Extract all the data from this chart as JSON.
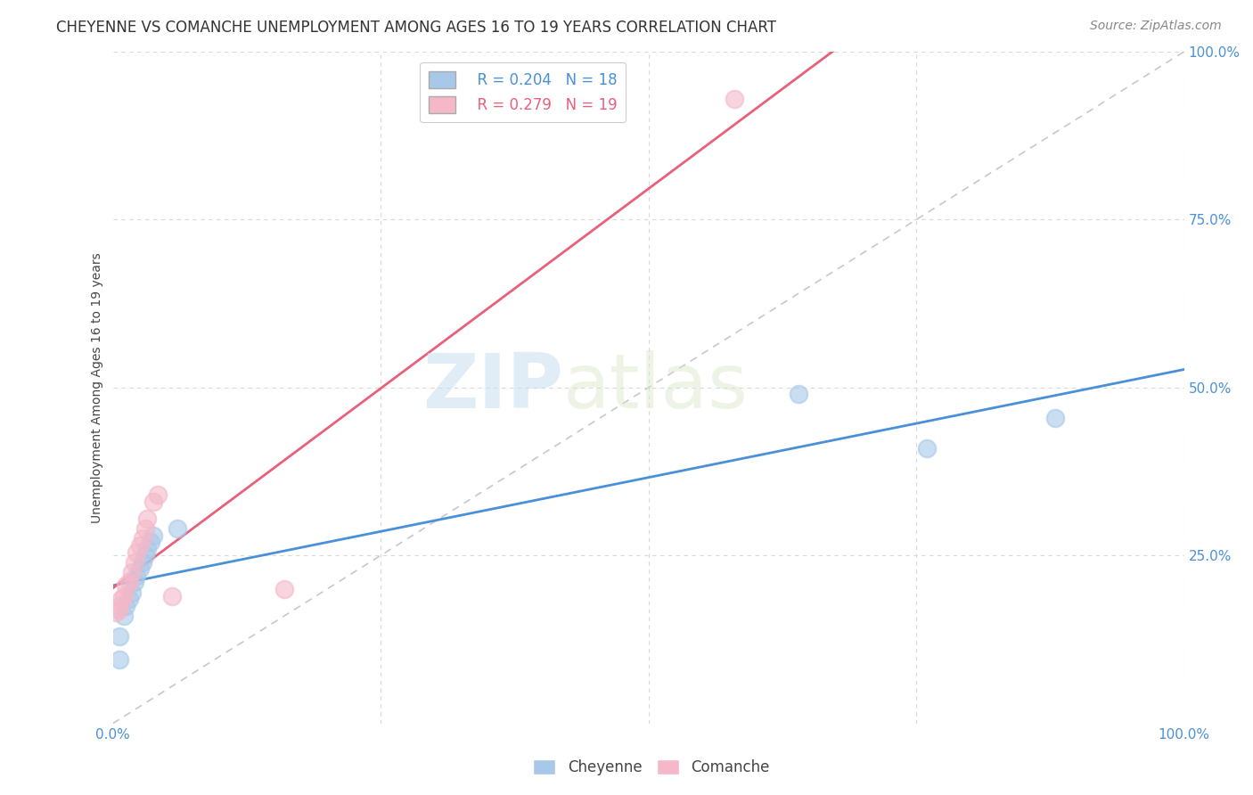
{
  "title": "CHEYENNE VS COMANCHE UNEMPLOYMENT AMONG AGES 16 TO 19 YEARS CORRELATION CHART",
  "source": "Source: ZipAtlas.com",
  "ylabel": "Unemployment Among Ages 16 to 19 years",
  "xlim": [
    0,
    1.0
  ],
  "ylim": [
    0,
    1.0
  ],
  "legend_r_cheyenne": "R = 0.204",
  "legend_n_cheyenne": "N = 18",
  "legend_r_comanche": "R = 0.279",
  "legend_n_comanche": "N = 19",
  "cheyenne_color": "#a8c8e8",
  "comanche_color": "#f4b8c8",
  "cheyenne_line_color": "#4a90d9",
  "comanche_line_color": "#e8607a",
  "diagonal_color": "#c8c8c8",
  "background_color": "#ffffff",
  "grid_color": "#d8d8d8",
  "cheyenne_x": [
    0.006,
    0.006,
    0.01,
    0.012,
    0.015,
    0.018,
    0.02,
    0.022,
    0.025,
    0.028,
    0.03,
    0.032,
    0.035,
    0.038,
    0.06,
    0.64,
    0.76,
    0.88
  ],
  "cheyenne_y": [
    0.095,
    0.13,
    0.16,
    0.175,
    0.185,
    0.195,
    0.21,
    0.22,
    0.23,
    0.24,
    0.25,
    0.26,
    0.27,
    0.28,
    0.29,
    0.49,
    0.41,
    0.455
  ],
  "comanche_x": [
    0.003,
    0.005,
    0.006,
    0.008,
    0.01,
    0.012,
    0.015,
    0.018,
    0.02,
    0.022,
    0.025,
    0.028,
    0.03,
    0.032,
    0.038,
    0.042,
    0.055,
    0.16,
    0.58
  ],
  "comanche_y": [
    0.165,
    0.17,
    0.175,
    0.185,
    0.19,
    0.205,
    0.21,
    0.225,
    0.24,
    0.255,
    0.265,
    0.275,
    0.29,
    0.305,
    0.33,
    0.34,
    0.19,
    0.2,
    0.93
  ],
  "watermark_zip": "ZIP",
  "watermark_atlas": "atlas",
  "title_fontsize": 12,
  "label_fontsize": 10,
  "tick_fontsize": 11,
  "legend_fontsize": 12,
  "source_fontsize": 10
}
